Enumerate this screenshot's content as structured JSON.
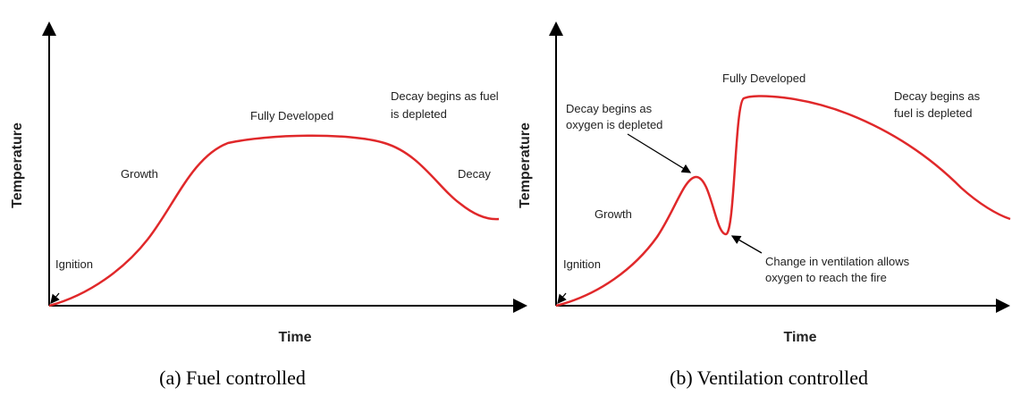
{
  "panels": [
    {
      "y_label": "Temperature",
      "x_label": "Time",
      "labels": {
        "ignition": "Ignition",
        "growth": "Growth",
        "fully_developed": "Fully Developed",
        "fuel_decay": [
          "Decay begins as fuel",
          "is depleted"
        ],
        "decay": "Decay"
      },
      "caption": "(a) Fuel controlled"
    },
    {
      "y_label": "Temperature",
      "x_label": "Time",
      "labels": {
        "ignition": "Ignition",
        "growth": "Growth",
        "oxygen_decay": [
          "Decay begins as",
          "oxygen is depleted"
        ],
        "fully_developed": "Fully Developed",
        "fuel_decay": [
          "Decay begins as",
          "fuel is depleted"
        ],
        "ventilation": [
          "Change in ventilation allows",
          "oxygen to reach the fire"
        ]
      },
      "caption": "(b) Ventilation controlled"
    }
  ]
}
